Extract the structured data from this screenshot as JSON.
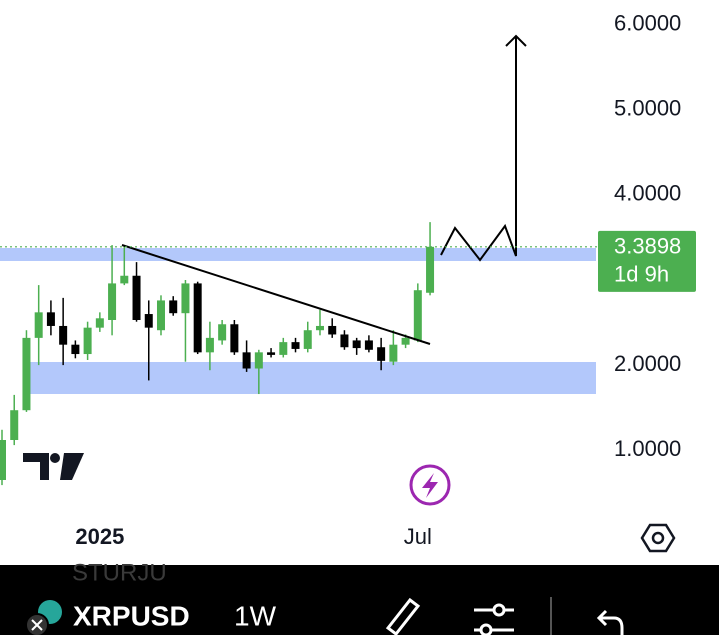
{
  "chart_data": {
    "type": "candlestick",
    "symbol": "XRPUSD",
    "interval": "1W",
    "watermark": "STURJU",
    "categories": [
      null,
      null,
      null,
      null,
      null,
      null,
      null,
      null,
      "2025",
      null,
      null,
      null,
      null,
      null,
      null,
      null,
      null,
      null,
      null,
      null,
      null,
      null,
      null,
      null,
      null,
      null,
      null,
      null,
      null,
      null,
      null,
      null,
      null,
      null,
      "Jul",
      null
    ],
    "open": [
      0.65,
      1.12,
      1.47,
      2.32,
      2.62,
      2.46,
      2.24,
      2.13,
      2.44,
      2.53,
      2.96,
      3.05,
      2.6,
      2.41,
      2.76,
      2.61,
      2.96,
      2.15,
      2.29,
      2.48,
      2.15,
      1.96,
      2.15,
      2.12,
      2.27,
      2.19,
      2.41,
      2.46,
      2.36,
      2.29,
      2.29,
      2.21,
      2.04,
      2.24,
      2.29,
      2.85
    ],
    "high": [
      1.24,
      1.65,
      2.41,
      2.94,
      2.76,
      2.79,
      2.29,
      2.51,
      2.62,
      3.41,
      3.41,
      3.21,
      2.76,
      2.82,
      2.81,
      3.0,
      2.98,
      2.51,
      2.53,
      2.53,
      2.29,
      2.18,
      2.2,
      2.32,
      2.32,
      2.51,
      2.65,
      2.55,
      2.41,
      2.32,
      2.35,
      2.32,
      2.41,
      2.36,
      2.96,
      3.68
    ],
    "low": [
      0.59,
      1.06,
      1.45,
      2.0,
      2.35,
      2.0,
      2.08,
      2.06,
      2.39,
      2.35,
      2.94,
      2.51,
      1.82,
      2.35,
      2.58,
      2.04,
      2.13,
      1.94,
      2.24,
      2.12,
      1.92,
      1.66,
      2.09,
      2.09,
      2.15,
      2.15,
      2.35,
      2.32,
      2.18,
      2.12,
      2.15,
      1.94,
      2.0,
      2.2,
      2.27,
      2.82
    ],
    "close": [
      1.12,
      1.47,
      2.32,
      2.62,
      2.46,
      2.24,
      2.13,
      2.44,
      2.55,
      2.96,
      3.05,
      2.53,
      2.44,
      2.76,
      2.61,
      2.96,
      2.15,
      2.32,
      2.48,
      2.15,
      1.96,
      2.15,
      2.12,
      2.27,
      2.19,
      2.41,
      2.46,
      2.36,
      2.21,
      2.2,
      2.18,
      2.05,
      2.24,
      2.32,
      2.88,
      3.39
    ],
    "up_color": "#4caf50",
    "down_color": "#000000",
    "ylim": [
      0.18,
      6.29
    ],
    "yticks": [
      {
        "value": 1,
        "label": "1.0000"
      },
      {
        "value": 2,
        "label": "2.0000"
      },
      {
        "value": 4,
        "label": "4.0000"
      },
      {
        "value": 5,
        "label": "5.0000"
      },
      {
        "value": 6,
        "label": "6.0000"
      }
    ],
    "last_price": {
      "value": 3.3898,
      "label": "3.3898"
    },
    "countdown": "1d 9h"
  }
}
